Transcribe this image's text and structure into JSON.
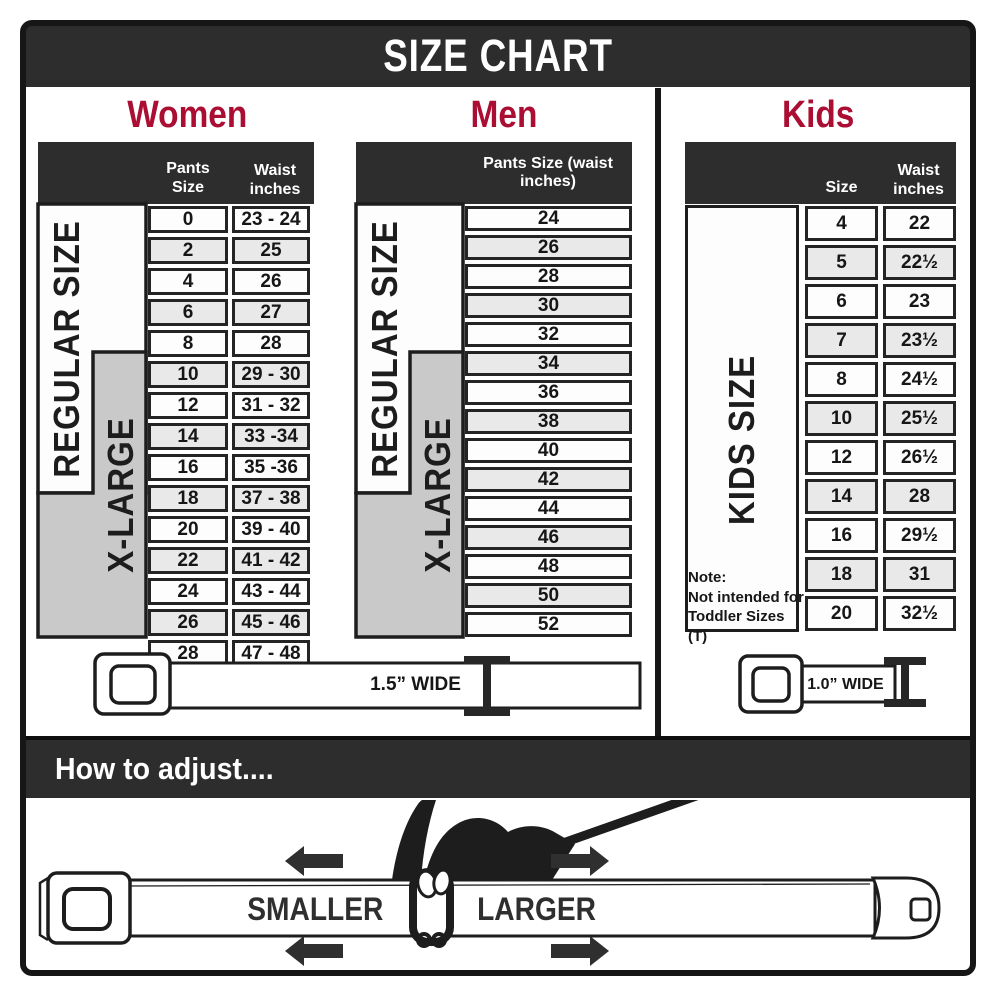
{
  "banner": {
    "title": "SIZE CHART"
  },
  "sections": {
    "women": {
      "heading": "Women",
      "headers": {
        "size": "Pants Size",
        "waist": "Waist inches"
      },
      "size_groups": [
        "REGULAR SIZE",
        "X-LARGE"
      ],
      "rows": [
        {
          "size": "0",
          "waist": "23 - 24"
        },
        {
          "size": "2",
          "waist": "25"
        },
        {
          "size": "4",
          "waist": "26"
        },
        {
          "size": "6",
          "waist": "27"
        },
        {
          "size": "8",
          "waist": "28"
        },
        {
          "size": "10",
          "waist": "29 - 30"
        },
        {
          "size": "12",
          "waist": "31 - 32"
        },
        {
          "size": "14",
          "waist": "33 -34"
        },
        {
          "size": "16",
          "waist": "35 -36"
        },
        {
          "size": "18",
          "waist": "37 - 38"
        },
        {
          "size": "20",
          "waist": "39 - 40"
        },
        {
          "size": "22",
          "waist": "41 - 42"
        },
        {
          "size": "24",
          "waist": "43 - 44"
        },
        {
          "size": "26",
          "waist": "45 - 46"
        },
        {
          "size": "28",
          "waist": "47 - 48"
        }
      ]
    },
    "men": {
      "heading": "Men",
      "header": "Pants Size (waist inches)",
      "size_groups": [
        "REGULAR SIZE",
        "X-LARGE"
      ],
      "rows": [
        "24",
        "26",
        "28",
        "30",
        "32",
        "34",
        "36",
        "38",
        "40",
        "42",
        "44",
        "46",
        "48",
        "50",
        "52"
      ]
    },
    "kids": {
      "heading": "Kids",
      "headers": {
        "size": "Size",
        "waist": "Waist inches"
      },
      "size_group": "KIDS SIZE",
      "note_label": "Note:",
      "note_text": "Not intended for Toddler Sizes (T)",
      "rows": [
        {
          "size": "4",
          "waist": "22"
        },
        {
          "size": "5",
          "waist": "22½"
        },
        {
          "size": "6",
          "waist": "23"
        },
        {
          "size": "7",
          "waist": "23½"
        },
        {
          "size": "8",
          "waist": "24½"
        },
        {
          "size": "10",
          "waist": "25½"
        },
        {
          "size": "12",
          "waist": "26½"
        },
        {
          "size": "14",
          "waist": "28"
        },
        {
          "size": "16",
          "waist": "29½"
        },
        {
          "size": "18",
          "waist": "31"
        },
        {
          "size": "20",
          "waist": "32½"
        }
      ]
    }
  },
  "belts": {
    "adult_width_label": "1.5” WIDE",
    "kids_width_label": "1.0” WIDE"
  },
  "adjust": {
    "heading": "How to adjust....",
    "smaller_label": "SMALLER",
    "larger_label": "LARGER"
  },
  "icons": {
    "buckle": "seatbelt-buckle-icon",
    "width_marker": "i-beam-width-marker-icon",
    "hand": "pinching-hand-icon",
    "arrow": "direction-arrow-icon"
  },
  "colors": {
    "accent": "#ab0e33",
    "charcoal": "#2d2d2d",
    "group_gray": "#c9c9c9",
    "row_alt": "#e9e9e9"
  }
}
